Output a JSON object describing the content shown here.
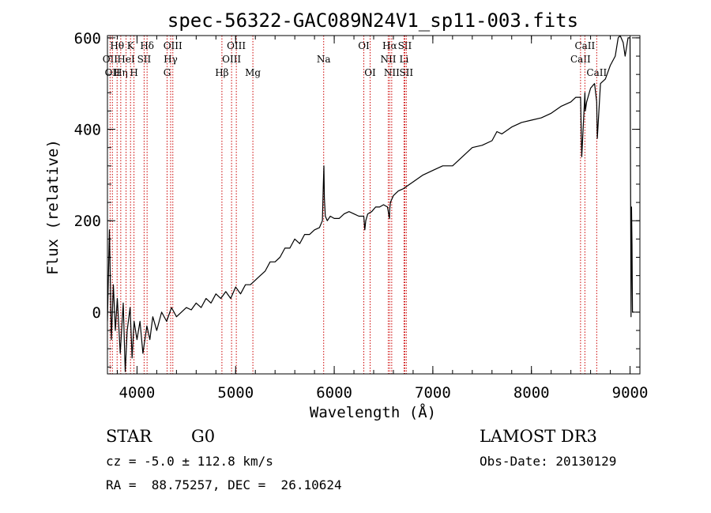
{
  "chart_data": {
    "type": "line",
    "title": "spec-56322-GAC089N24V1_sp11-003.fits",
    "xlabel": "Wavelength (Å)",
    "ylabel": "Flux (relative)",
    "xlim": [
      3700,
      9100
    ],
    "ylim": [
      -135,
      605
    ],
    "xticks": [
      {
        "value": 4000,
        "label": "4000"
      },
      {
        "value": 5000,
        "label": "5000"
      },
      {
        "value": 6000,
        "label": "6000"
      },
      {
        "value": 7000,
        "label": "7000"
      },
      {
        "value": 8000,
        "label": "8000"
      },
      {
        "value": 9000,
        "label": "9000"
      }
    ],
    "yticks": [
      {
        "value": 0,
        "label": "0"
      },
      {
        "value": 200,
        "label": "200"
      },
      {
        "value": 400,
        "label": "400"
      },
      {
        "value": 600,
        "label": "600"
      }
    ],
    "x_minor_step": 200,
    "y_minor_step": 40,
    "series": [
      {
        "name": "spectrum",
        "color": "#000000",
        "x": [
          3700,
          3720,
          3740,
          3760,
          3780,
          3800,
          3830,
          3860,
          3880,
          3900,
          3930,
          3950,
          3970,
          4000,
          4030,
          4060,
          4100,
          4130,
          4160,
          4200,
          4250,
          4300,
          4350,
          4400,
          4450,
          4500,
          4550,
          4600,
          4650,
          4700,
          4750,
          4800,
          4850,
          4900,
          4950,
          5000,
          5050,
          5100,
          5150,
          5200,
          5250,
          5300,
          5350,
          5400,
          5450,
          5500,
          5550,
          5600,
          5650,
          5700,
          5750,
          5800,
          5850,
          5880,
          5890,
          5895,
          5900,
          5910,
          5930,
          5960,
          6000,
          6050,
          6100,
          6150,
          6200,
          6250,
          6300,
          6310,
          6320,
          6340,
          6380,
          6420,
          6460,
          6500,
          6540,
          6560,
          6563,
          6570,
          6600,
          6650,
          6700,
          6800,
          6900,
          7000,
          7100,
          7200,
          7300,
          7400,
          7500,
          7600,
          7650,
          7700,
          7800,
          7900,
          8000,
          8100,
          8200,
          8300,
          8400,
          8450,
          8498,
          8510,
          8542,
          8546,
          8560,
          8600,
          8640,
          8662,
          8668,
          8700,
          8750,
          8800,
          8850,
          8880,
          8900,
          8930,
          8950,
          8980,
          9000,
          9010,
          9015,
          9020,
          9025,
          9030,
          9040
        ],
        "y": [
          -20,
          180,
          -60,
          60,
          -40,
          30,
          -90,
          20,
          -130,
          -40,
          10,
          -100,
          -20,
          -60,
          -20,
          -90,
          -30,
          -60,
          -10,
          -40,
          0,
          -20,
          10,
          -10,
          0,
          10,
          5,
          20,
          10,
          30,
          20,
          40,
          30,
          45,
          30,
          55,
          40,
          60,
          60,
          70,
          80,
          90,
          110,
          110,
          120,
          140,
          140,
          160,
          150,
          170,
          170,
          180,
          185,
          200,
          280,
          320,
          250,
          210,
          200,
          210,
          205,
          205,
          215,
          220,
          215,
          210,
          210,
          180,
          200,
          215,
          220,
          230,
          230,
          235,
          230,
          205,
          225,
          240,
          255,
          265,
          270,
          285,
          300,
          310,
          320,
          320,
          340,
          360,
          365,
          375,
          395,
          390,
          405,
          415,
          420,
          425,
          435,
          450,
          460,
          470,
          470,
          340,
          480,
          440,
          460,
          490,
          500,
          460,
          380,
          500,
          510,
          540,
          560,
          600,
          605,
          590,
          560,
          600,
          600,
          -10,
          230,
          150,
          0,
          0,
          0
        ]
      }
    ],
    "line_markers": [
      {
        "wavelength": 3727,
        "label": "OII",
        "row": 2
      },
      {
        "wavelength": 3750,
        "label": "OII",
        "row": 3
      },
      {
        "wavelength": 3798,
        "label": "Hθ",
        "row": 1
      },
      {
        "wavelength": 3835,
        "label": "Hη",
        "row": 3
      },
      {
        "wavelength": 3889,
        "label": "HeI",
        "row": 2
      },
      {
        "wavelength": 3934,
        "label": "K",
        "row": 1
      },
      {
        "wavelength": 3969,
        "label": "H",
        "row": 3
      },
      {
        "wavelength": 4072,
        "label": "SII",
        "row": 2
      },
      {
        "wavelength": 4102,
        "label": "Hδ",
        "row": 1
      },
      {
        "wavelength": 4305,
        "label": "G",
        "row": 3
      },
      {
        "wavelength": 4341,
        "label": "Hγ",
        "row": 2
      },
      {
        "wavelength": 4363,
        "label": "OIII",
        "row": 1
      },
      {
        "wavelength": 4861,
        "label": "Hβ",
        "row": 3
      },
      {
        "wavelength": 4959,
        "label": "OIII",
        "row": 2
      },
      {
        "wavelength": 5007,
        "label": "OIII",
        "row": 1
      },
      {
        "wavelength": 5175,
        "label": "Mg",
        "row": 3
      },
      {
        "wavelength": 5893,
        "label": "Na",
        "row": 2
      },
      {
        "wavelength": 6300,
        "label": "OI",
        "row": 1
      },
      {
        "wavelength": 6364,
        "label": "OI",
        "row": 3
      },
      {
        "wavelength": 6548,
        "label": "NII",
        "row": 2
      },
      {
        "wavelength": 6563,
        "label": "Hα",
        "row": 1
      },
      {
        "wavelength": 6583,
        "label": "NII",
        "row": 3
      },
      {
        "wavelength": 6708,
        "label": "Li",
        "row": 2
      },
      {
        "wavelength": 6716,
        "label": "SII",
        "row": 1
      },
      {
        "wavelength": 6731,
        "label": "SII",
        "row": 3
      },
      {
        "wavelength": 8498,
        "label": "CaII",
        "row": 2
      },
      {
        "wavelength": 8542,
        "label": "CaII",
        "row": 1
      },
      {
        "wavelength": 8662,
        "label": "CaII",
        "row": 3
      }
    ],
    "marker_color": "#cc0000"
  },
  "info": {
    "object_class": "STAR",
    "subclass": "G0",
    "survey": "LAMOST DR3",
    "redshift_text": "cz = -5.0 ± 112.8 km/s",
    "obs_date_text": "Obs-Date: 20130129",
    "coords_text": "RA =  88.75257, DEC =  26.10624"
  }
}
